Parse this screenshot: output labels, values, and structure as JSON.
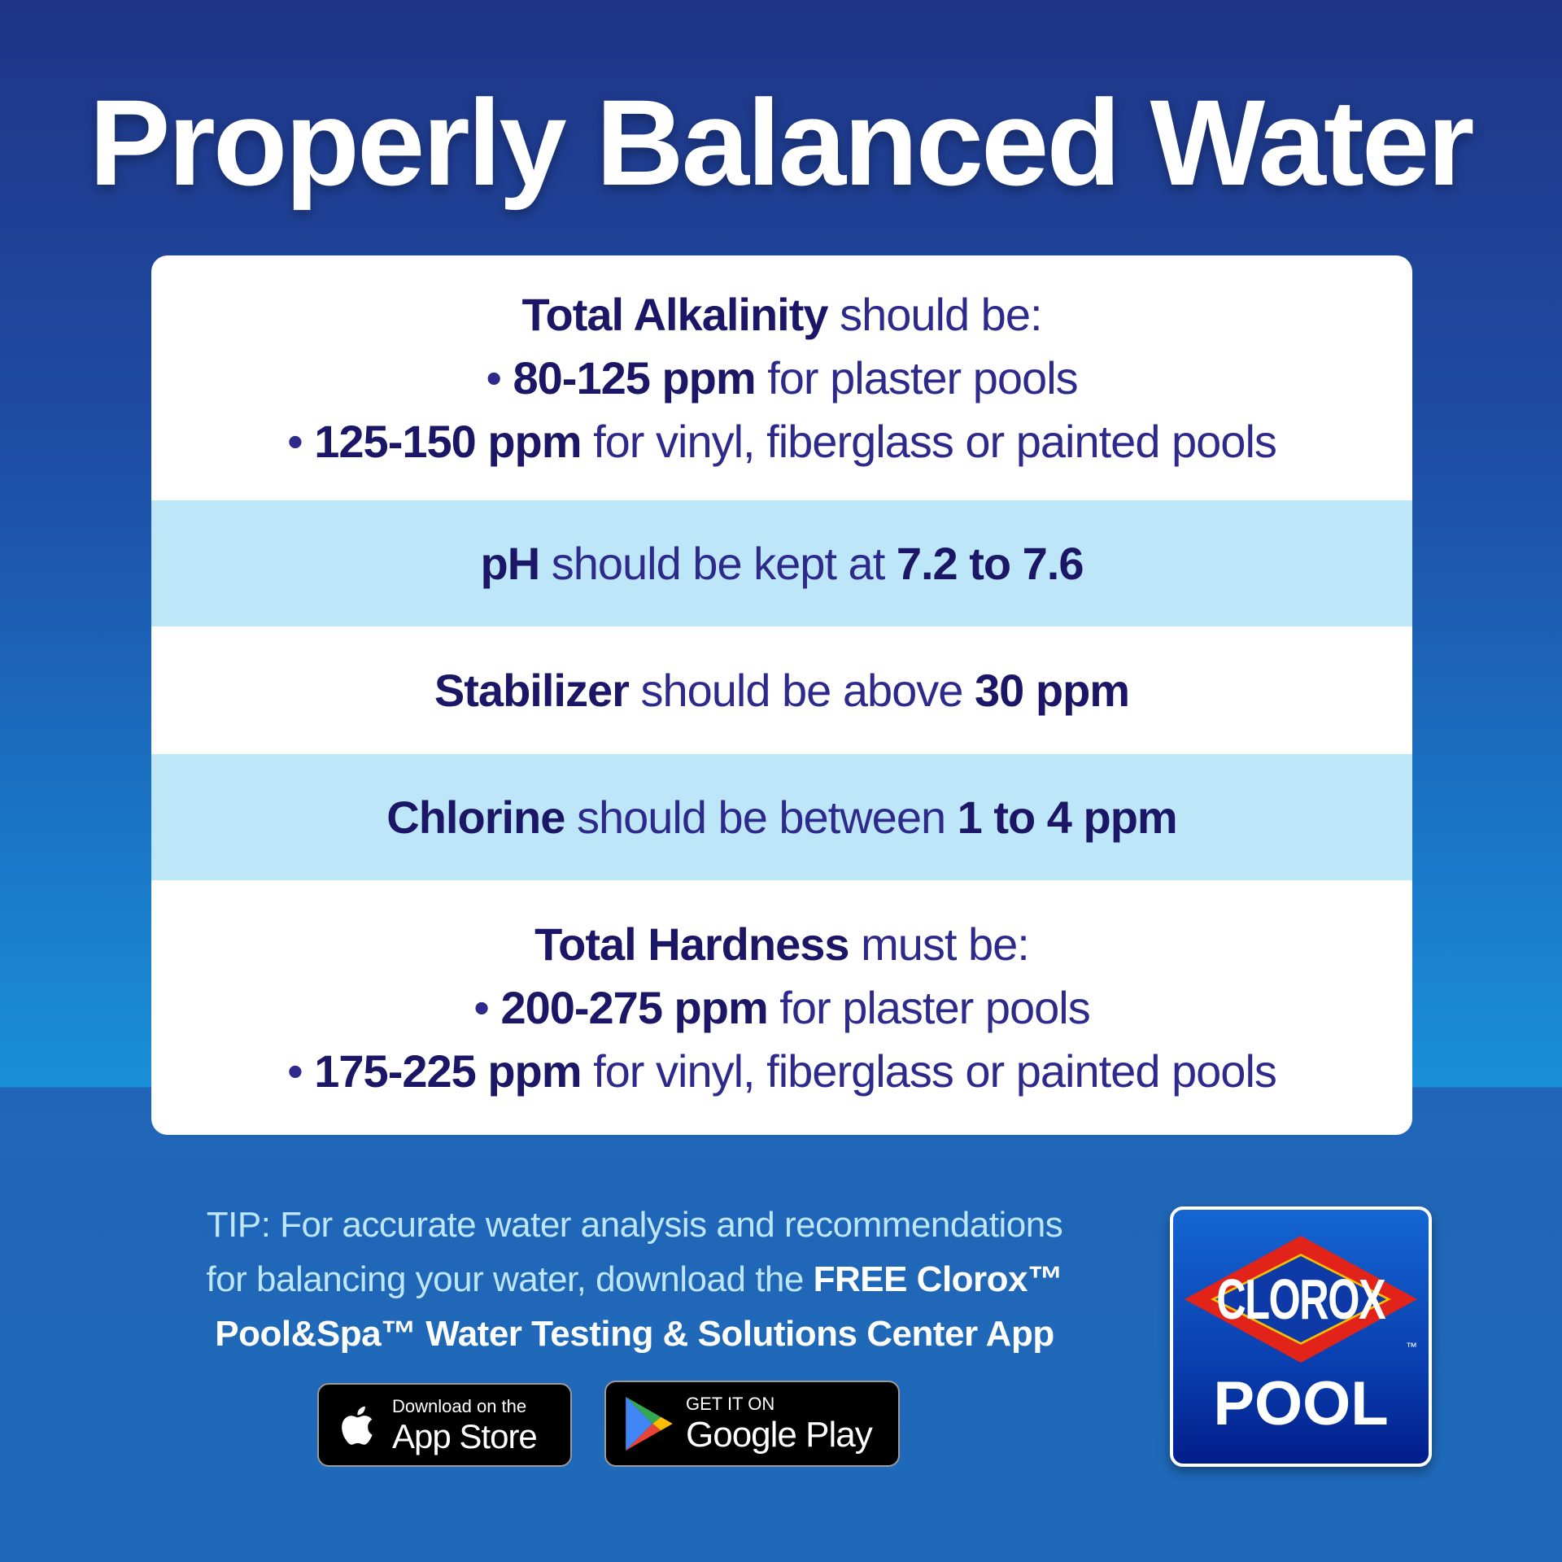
{
  "title": "Properly Balanced Water",
  "rows": [
    {
      "bold": "Total Alkalinity",
      "rest": " should be:",
      "bullets": [
        {
          "bold": "80-125 ppm",
          "rest": " for plaster pools"
        },
        {
          "bold": "125-150 ppm",
          "rest": " for vinyl, fiberglass or painted pools"
        }
      ]
    },
    {
      "bold": "pH",
      "rest": " should be kept at ",
      "value": "7.2 to 7.6"
    },
    {
      "bold": "Stabilizer",
      "rest": " should be above ",
      "value": "30 ppm"
    },
    {
      "bold": "Chlorine",
      "rest": " should be between ",
      "value": "1 to 4 ppm"
    },
    {
      "bold": "Total Hardness",
      "rest": " must be:",
      "bullets": [
        {
          "bold": "200-275 ppm",
          "rest": " for plaster pools"
        },
        {
          "bold": "175-225 ppm",
          "rest": " for vinyl, fiberglass or painted pools"
        }
      ]
    }
  ],
  "tip": {
    "line1": "TIP: For accurate water analysis and recommendations",
    "line2": "for balancing your water, download the ",
    "line2_bold": "FREE Clorox™",
    "line3_bold": "Pool&Spa™ Water Testing & Solutions Center App"
  },
  "app_store": {
    "small": "Download on the",
    "big": "App Store"
  },
  "google_play": {
    "small": "GET IT ON",
    "big": "Google Play"
  },
  "logo": {
    "brand": "CLOROX",
    "tm": "™",
    "product": "POOL"
  },
  "colors": {
    "row_highlight": "#bde6f8",
    "text_dark": "#1b1766",
    "text": "#2d2a8c",
    "logo_red": "#e2231a"
  }
}
